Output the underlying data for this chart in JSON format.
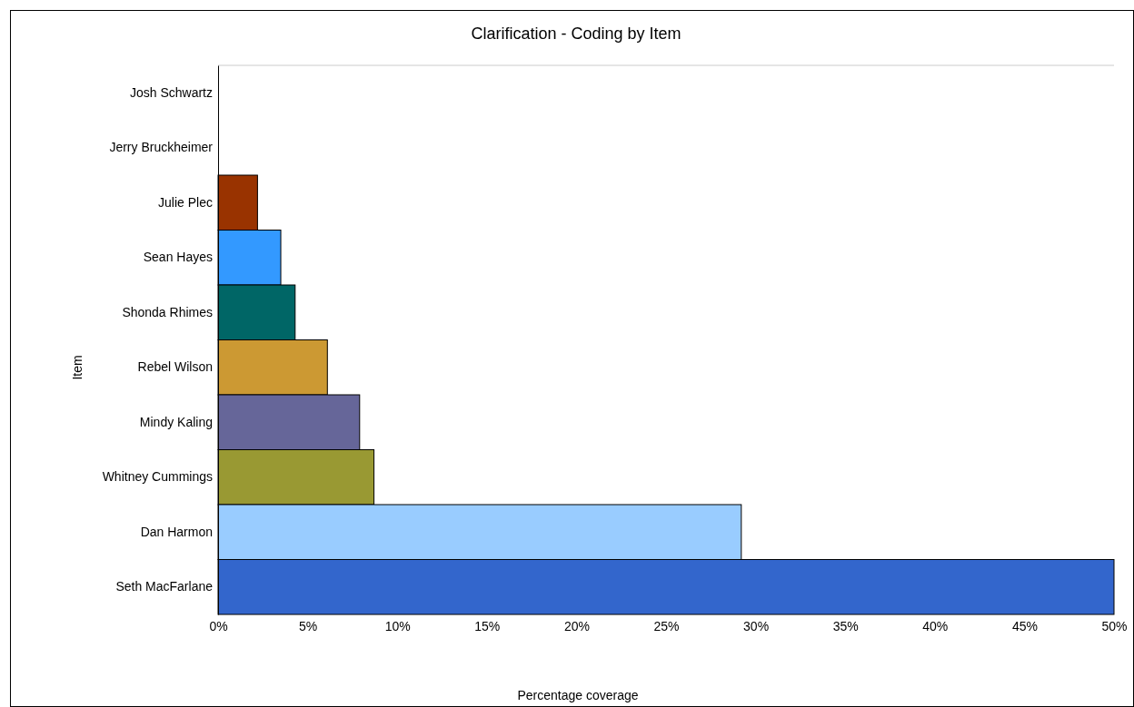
{
  "chart_data": {
    "type": "bar",
    "orientation": "horizontal",
    "title": "Clarification - Coding by Item",
    "xlabel": "Percentage coverage",
    "ylabel": "Item",
    "categories": [
      "Josh Schwartz",
      "Jerry Bruckheimer",
      "Julie Plec",
      "Sean Hayes",
      "Shonda Rhimes",
      "Rebel Wilson",
      "Mindy Kaling",
      "Whitney Cummings",
      "Dan Harmon",
      "Seth MacFarlane"
    ],
    "values": [
      0,
      0,
      2.2,
      3.5,
      4.3,
      6.1,
      7.9,
      8.7,
      29.2,
      50
    ],
    "colors": [
      "#993300",
      "#993300",
      "#993300",
      "#3399ff",
      "#006666",
      "#cc9933",
      "#666699",
      "#999933",
      "#99ccff",
      "#3366cc"
    ],
    "xlim": [
      0,
      50
    ],
    "xticks": [
      {
        "value": 0,
        "label": "0%"
      },
      {
        "value": 5,
        "label": "5%"
      },
      {
        "value": 10,
        "label": "10%"
      },
      {
        "value": 15,
        "label": "15%"
      },
      {
        "value": 20,
        "label": "20%"
      },
      {
        "value": 25,
        "label": "25%"
      },
      {
        "value": 30,
        "label": "30%"
      },
      {
        "value": 35,
        "label": "35%"
      },
      {
        "value": 40,
        "label": "40%"
      },
      {
        "value": 45,
        "label": "45%"
      },
      {
        "value": 50,
        "label": "50%"
      }
    ],
    "grid": false
  }
}
